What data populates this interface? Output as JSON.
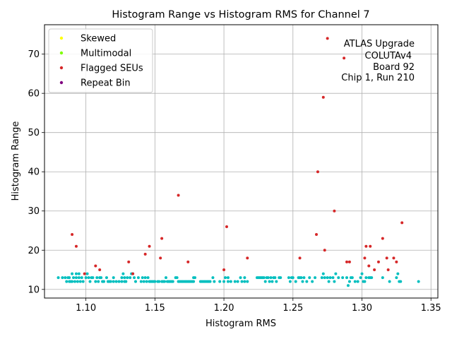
{
  "chart_data": {
    "type": "scatter",
    "title": "Histogram Range vs Histogram RMS for Channel 7",
    "xlabel": "Histogram RMS",
    "ylabel": "Histogram Range",
    "xlim": [
      1.07,
      1.355
    ],
    "ylim": [
      7.8,
      77.5
    ],
    "xticks": [
      1.1,
      1.15,
      1.2,
      1.25,
      1.3,
      1.35
    ],
    "xtick_labels": [
      "1.10",
      "1.15",
      "1.20",
      "1.25",
      "1.30",
      "1.35"
    ],
    "yticks": [
      10,
      20,
      30,
      40,
      50,
      60,
      70
    ],
    "ytick_labels": [
      "10",
      "20",
      "30",
      "40",
      "50",
      "60",
      "70"
    ],
    "grid": true,
    "legend_position": "upper-left",
    "annotation": [
      "ATLAS Upgrade",
      "COLUTAv4",
      "Board 92",
      "Chip 1, Run 210"
    ],
    "series": [
      {
        "name": "",
        "color": "#00bfbf",
        "points": [
          [
            1.08,
            13
          ],
          [
            1.083,
            13
          ],
          [
            1.085,
            13
          ],
          [
            1.086,
            12
          ],
          [
            1.087,
            13
          ],
          [
            1.088,
            12
          ],
          [
            1.088,
            13
          ],
          [
            1.089,
            12
          ],
          [
            1.09,
            14
          ],
          [
            1.09,
            12
          ],
          [
            1.091,
            13
          ],
          [
            1.092,
            12
          ],
          [
            1.093,
            14
          ],
          [
            1.093,
            13
          ],
          [
            1.094,
            12
          ],
          [
            1.095,
            13
          ],
          [
            1.095,
            14
          ],
          [
            1.096,
            12
          ],
          [
            1.097,
            13
          ],
          [
            1.098,
            12
          ],
          [
            1.1,
            13
          ],
          [
            1.101,
            14
          ],
          [
            1.102,
            13
          ],
          [
            1.103,
            12
          ],
          [
            1.104,
            13
          ],
          [
            1.105,
            13
          ],
          [
            1.107,
            12
          ],
          [
            1.108,
            13
          ],
          [
            1.109,
            12
          ],
          [
            1.11,
            13
          ],
          [
            1.111,
            13
          ],
          [
            1.112,
            12
          ],
          [
            1.113,
            12
          ],
          [
            1.115,
            13
          ],
          [
            1.116,
            12
          ],
          [
            1.117,
            12
          ],
          [
            1.118,
            12
          ],
          [
            1.12,
            13
          ],
          [
            1.12,
            12
          ],
          [
            1.122,
            12
          ],
          [
            1.124,
            12
          ],
          [
            1.126,
            13
          ],
          [
            1.126,
            12
          ],
          [
            1.127,
            14
          ],
          [
            1.128,
            12
          ],
          [
            1.128,
            13
          ],
          [
            1.129,
            12
          ],
          [
            1.13,
            13
          ],
          [
            1.132,
            13
          ],
          [
            1.133,
            14
          ],
          [
            1.134,
            14
          ],
          [
            1.135,
            13
          ],
          [
            1.136,
            12
          ],
          [
            1.138,
            13
          ],
          [
            1.14,
            12
          ],
          [
            1.141,
            13
          ],
          [
            1.142,
            12
          ],
          [
            1.143,
            13
          ],
          [
            1.144,
            12
          ],
          [
            1.145,
            13
          ],
          [
            1.146,
            12
          ],
          [
            1.147,
            12
          ],
          [
            1.148,
            12
          ],
          [
            1.149,
            12
          ],
          [
            1.15,
            12
          ],
          [
            1.152,
            12
          ],
          [
            1.153,
            12
          ],
          [
            1.155,
            12
          ],
          [
            1.156,
            12
          ],
          [
            1.157,
            12
          ],
          [
            1.158,
            13
          ],
          [
            1.159,
            12
          ],
          [
            1.16,
            12
          ],
          [
            1.161,
            12
          ],
          [
            1.162,
            12
          ],
          [
            1.163,
            12
          ],
          [
            1.165,
            13
          ],
          [
            1.166,
            13
          ],
          [
            1.167,
            12
          ],
          [
            1.168,
            12
          ],
          [
            1.169,
            12
          ],
          [
            1.17,
            12
          ],
          [
            1.171,
            12
          ],
          [
            1.172,
            12
          ],
          [
            1.173,
            12
          ],
          [
            1.174,
            12
          ],
          [
            1.175,
            12
          ],
          [
            1.176,
            12
          ],
          [
            1.177,
            12
          ],
          [
            1.178,
            13
          ],
          [
            1.178,
            12
          ],
          [
            1.179,
            13
          ],
          [
            1.183,
            12
          ],
          [
            1.184,
            12
          ],
          [
            1.185,
            12
          ],
          [
            1.186,
            12
          ],
          [
            1.187,
            12
          ],
          [
            1.188,
            12
          ],
          [
            1.189,
            12
          ],
          [
            1.19,
            12
          ],
          [
            1.192,
            13
          ],
          [
            1.193,
            12
          ],
          [
            1.197,
            12
          ],
          [
            1.2,
            12
          ],
          [
            1.201,
            13
          ],
          [
            1.203,
            13
          ],
          [
            1.203,
            12
          ],
          [
            1.205,
            12
          ],
          [
            1.208,
            12
          ],
          [
            1.21,
            12
          ],
          [
            1.212,
            13
          ],
          [
            1.213,
            12
          ],
          [
            1.215,
            12
          ],
          [
            1.215,
            13
          ],
          [
            1.217,
            12
          ],
          [
            1.224,
            13
          ],
          [
            1.225,
            13
          ],
          [
            1.226,
            13
          ],
          [
            1.227,
            13
          ],
          [
            1.228,
            13
          ],
          [
            1.229,
            13
          ],
          [
            1.23,
            12
          ],
          [
            1.231,
            13
          ],
          [
            1.232,
            13
          ],
          [
            1.233,
            12
          ],
          [
            1.234,
            13
          ],
          [
            1.235,
            12
          ],
          [
            1.236,
            13
          ],
          [
            1.237,
            13
          ],
          [
            1.238,
            12
          ],
          [
            1.24,
            13
          ],
          [
            1.241,
            13
          ],
          [
            1.247,
            13
          ],
          [
            1.248,
            12
          ],
          [
            1.249,
            13
          ],
          [
            1.25,
            13
          ],
          [
            1.252,
            12
          ],
          [
            1.254,
            13
          ],
          [
            1.255,
            13
          ],
          [
            1.256,
            13
          ],
          [
            1.257,
            12
          ],
          [
            1.258,
            13
          ],
          [
            1.26,
            12
          ],
          [
            1.262,
            13
          ],
          [
            1.264,
            12
          ],
          [
            1.266,
            13
          ],
          [
            1.271,
            13
          ],
          [
            1.272,
            14
          ],
          [
            1.273,
            13
          ],
          [
            1.275,
            13
          ],
          [
            1.276,
            12
          ],
          [
            1.277,
            13
          ],
          [
            1.279,
            13
          ],
          [
            1.28,
            12
          ],
          [
            1.281,
            14
          ],
          [
            1.283,
            13
          ],
          [
            1.286,
            13
          ],
          [
            1.289,
            13
          ],
          [
            1.29,
            11
          ],
          [
            1.291,
            12
          ],
          [
            1.292,
            13
          ],
          [
            1.293,
            13
          ],
          [
            1.295,
            12
          ],
          [
            1.297,
            12
          ],
          [
            1.299,
            13
          ],
          [
            1.3,
            14
          ],
          [
            1.301,
            12
          ],
          [
            1.302,
            12
          ],
          [
            1.303,
            13
          ],
          [
            1.305,
            13
          ],
          [
            1.306,
            13
          ],
          [
            1.307,
            13
          ],
          [
            1.315,
            13
          ],
          [
            1.32,
            12
          ],
          [
            1.325,
            13
          ],
          [
            1.326,
            14
          ],
          [
            1.327,
            12
          ],
          [
            1.328,
            12
          ],
          [
            1.341,
            12
          ]
        ]
      },
      {
        "name": "Skewed",
        "color": "#ffff00",
        "points": []
      },
      {
        "name": "Multimodal",
        "color": "#7fff00",
        "points": []
      },
      {
        "name": "Flagged SEUs",
        "color": "#d62728",
        "points": [
          [
            1.09,
            24
          ],
          [
            1.093,
            21
          ],
          [
            1.099,
            14
          ],
          [
            1.107,
            16
          ],
          [
            1.11,
            15
          ],
          [
            1.131,
            17
          ],
          [
            1.134,
            14
          ],
          [
            1.143,
            19
          ],
          [
            1.146,
            21
          ],
          [
            1.154,
            18
          ],
          [
            1.155,
            23
          ],
          [
            1.167,
            34
          ],
          [
            1.174,
            17
          ],
          [
            1.2,
            15
          ],
          [
            1.202,
            26
          ],
          [
            1.217,
            18
          ],
          [
            1.255,
            18
          ],
          [
            1.267,
            24
          ],
          [
            1.268,
            40
          ],
          [
            1.272,
            59
          ],
          [
            1.273,
            20
          ],
          [
            1.275,
            74
          ],
          [
            1.28,
            30
          ],
          [
            1.287,
            69
          ],
          [
            1.289,
            17
          ],
          [
            1.291,
            17
          ],
          [
            1.302,
            18
          ],
          [
            1.303,
            21
          ],
          [
            1.305,
            16
          ],
          [
            1.306,
            21
          ],
          [
            1.309,
            15
          ],
          [
            1.312,
            17
          ],
          [
            1.315,
            23
          ],
          [
            1.318,
            18
          ],
          [
            1.319,
            15
          ],
          [
            1.323,
            18
          ],
          [
            1.325,
            17
          ],
          [
            1.329,
            27
          ]
        ]
      },
      {
        "name": "Repeat Bin",
        "color": "#800080",
        "points": []
      }
    ]
  }
}
